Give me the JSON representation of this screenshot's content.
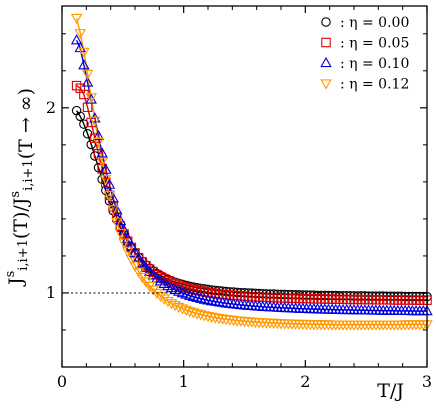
{
  "chart_data": {
    "type": "line",
    "xlabel": "T/J",
    "ylabel": "J^s_{i,i+1}(T)/J^s_{i,i+1}(T → ∞)",
    "xlim": [
      0,
      3
    ],
    "ylim": [
      0.6,
      2.55
    ],
    "x_ticks": [
      0,
      1,
      2,
      3
    ],
    "y_ticks": [
      1,
      2
    ],
    "grid": false,
    "reference_line": {
      "y": 1.0,
      "style": "dotted"
    },
    "legend_position": "top-right",
    "series": [
      {
        "name": ": η = 0.00",
        "marker": "circle",
        "color": "#000000",
        "x": [
          0.12,
          0.15,
          0.18,
          0.21,
          0.24,
          0.27,
          0.3,
          0.33,
          0.36,
          0.39,
          0.42,
          0.45,
          0.48,
          0.51,
          0.54,
          0.57,
          0.6,
          0.63,
          0.66,
          0.69,
          0.72,
          0.75,
          0.78,
          0.81,
          0.84,
          0.87,
          0.9,
          0.93,
          0.96,
          0.99,
          1.02,
          1.05,
          1.08,
          1.11,
          1.14,
          1.17,
          1.2,
          1.23,
          1.26,
          1.29,
          1.32,
          1.35,
          1.38,
          1.41,
          1.44,
          1.47,
          1.5,
          1.53,
          1.56,
          1.59,
          1.62,
          1.65,
          1.68,
          1.71,
          1.74,
          1.77,
          1.8,
          1.83,
          1.86,
          1.89,
          1.92,
          1.95,
          1.98,
          2.01,
          2.04,
          2.07,
          2.1,
          2.13,
          2.16,
          2.19,
          2.22,
          2.25,
          2.28,
          2.31,
          2.34,
          2.37,
          2.4,
          2.43,
          2.46,
          2.49,
          2.52,
          2.55,
          2.58,
          2.61,
          2.64,
          2.67,
          2.7,
          2.73,
          2.76,
          2.79,
          2.82,
          2.85,
          2.88,
          2.91,
          2.94,
          2.97,
          3.0
        ],
        "y": [
          1.985,
          1.954,
          1.912,
          1.86,
          1.802,
          1.74,
          1.677,
          1.614,
          1.554,
          1.497,
          1.444,
          1.396,
          1.352,
          1.312,
          1.277,
          1.245,
          1.217,
          1.192,
          1.17,
          1.151,
          1.134,
          1.119,
          1.105,
          1.094,
          1.083,
          1.074,
          1.066,
          1.058,
          1.052,
          1.046,
          1.041,
          1.036,
          1.032,
          1.028,
          1.025,
          1.022,
          1.019,
          1.016,
          1.014,
          1.012,
          1.01,
          1.008,
          1.006,
          1.005,
          1.003,
          1.002,
          1.001,
          1.0,
          0.999,
          0.998,
          0.997,
          0.996,
          0.995,
          0.994,
          0.994,
          0.993,
          0.992,
          0.992,
          0.991,
          0.991,
          0.99,
          0.99,
          0.989,
          0.989,
          0.988,
          0.988,
          0.987,
          0.987,
          0.987,
          0.986,
          0.986,
          0.986,
          0.985,
          0.985,
          0.985,
          0.985,
          0.984,
          0.984,
          0.984,
          0.984,
          0.983,
          0.983,
          0.983,
          0.983,
          0.983,
          0.982,
          0.982,
          0.982,
          0.982,
          0.982,
          0.981,
          0.981,
          0.981,
          0.981,
          0.981,
          0.981,
          0.98
        ]
      },
      {
        "name": ": η = 0.05",
        "marker": "square",
        "color": "#dd0000",
        "x": [
          0.12,
          0.15,
          0.18,
          0.21,
          0.24,
          0.27,
          0.3,
          0.33,
          0.36,
          0.39,
          0.42,
          0.45,
          0.48,
          0.51,
          0.54,
          0.57,
          0.6,
          0.63,
          0.66,
          0.69,
          0.72,
          0.75,
          0.78,
          0.81,
          0.84,
          0.87,
          0.9,
          0.93,
          0.96,
          0.99,
          1.02,
          1.05,
          1.08,
          1.11,
          1.14,
          1.17,
          1.2,
          1.23,
          1.26,
          1.29,
          1.32,
          1.35,
          1.38,
          1.41,
          1.44,
          1.47,
          1.5,
          1.53,
          1.56,
          1.59,
          1.62,
          1.65,
          1.68,
          1.71,
          1.74,
          1.77,
          1.8,
          1.83,
          1.86,
          1.89,
          1.92,
          1.95,
          1.98,
          2.01,
          2.04,
          2.07,
          2.1,
          2.13,
          2.16,
          2.19,
          2.22,
          2.25,
          2.28,
          2.31,
          2.34,
          2.37,
          2.4,
          2.43,
          2.46,
          2.49,
          2.52,
          2.55,
          2.58,
          2.61,
          2.64,
          2.67,
          2.7,
          2.73,
          2.76,
          2.79,
          2.82,
          2.85,
          2.88,
          2.91,
          2.94,
          2.97,
          3.0
        ],
        "y": [
          2.12,
          2.106,
          2.072,
          2.003,
          1.921,
          1.836,
          1.752,
          1.671,
          1.596,
          1.527,
          1.465,
          1.41,
          1.361,
          1.318,
          1.28,
          1.246,
          1.216,
          1.19,
          1.167,
          1.147,
          1.129,
          1.113,
          1.099,
          1.087,
          1.076,
          1.066,
          1.057,
          1.049,
          1.042,
          1.035,
          1.029,
          1.024,
          1.019,
          1.015,
          1.011,
          1.007,
          1.004,
          1.001,
          0.998,
          0.995,
          0.993,
          0.991,
          0.989,
          0.987,
          0.986,
          0.984,
          0.983,
          0.981,
          0.98,
          0.979,
          0.978,
          0.977,
          0.976,
          0.975,
          0.975,
          0.974,
          0.973,
          0.973,
          0.972,
          0.971,
          0.971,
          0.97,
          0.97,
          0.969,
          0.969,
          0.968,
          0.968,
          0.968,
          0.967,
          0.967,
          0.967,
          0.966,
          0.966,
          0.966,
          0.965,
          0.965,
          0.965,
          0.965,
          0.964,
          0.964,
          0.964,
          0.964,
          0.963,
          0.963,
          0.963,
          0.963,
          0.963,
          0.962,
          0.962,
          0.962,
          0.962,
          0.962,
          0.962,
          0.961,
          0.961,
          0.961,
          0.961
        ]
      },
      {
        "name": ": η = 0.10",
        "marker": "triangle-up",
        "color": "#0000dd",
        "x": [
          0.12,
          0.15,
          0.18,
          0.21,
          0.24,
          0.27,
          0.3,
          0.33,
          0.36,
          0.39,
          0.42,
          0.45,
          0.48,
          0.51,
          0.54,
          0.57,
          0.6,
          0.63,
          0.66,
          0.69,
          0.72,
          0.75,
          0.78,
          0.81,
          0.84,
          0.87,
          0.9,
          0.93,
          0.96,
          0.99,
          1.02,
          1.05,
          1.08,
          1.11,
          1.14,
          1.17,
          1.2,
          1.23,
          1.26,
          1.29,
          1.32,
          1.35,
          1.38,
          1.41,
          1.44,
          1.47,
          1.5,
          1.53,
          1.56,
          1.59,
          1.62,
          1.65,
          1.68,
          1.71,
          1.74,
          1.77,
          1.8,
          1.83,
          1.86,
          1.89,
          1.92,
          1.95,
          1.98,
          2.01,
          2.04,
          2.07,
          2.1,
          2.13,
          2.16,
          2.19,
          2.22,
          2.25,
          2.28,
          2.31,
          2.34,
          2.37,
          2.4,
          2.43,
          2.46,
          2.49,
          2.52,
          2.55,
          2.58,
          2.61,
          2.64,
          2.67,
          2.7,
          2.73,
          2.76,
          2.79,
          2.82,
          2.85,
          2.88,
          2.91,
          2.94,
          2.97,
          3.0
        ],
        "y": [
          2.365,
          2.323,
          2.23,
          2.137,
          2.045,
          1.943,
          1.848,
          1.754,
          1.666,
          1.585,
          1.512,
          1.447,
          1.389,
          1.338,
          1.293,
          1.253,
          1.218,
          1.187,
          1.16,
          1.136,
          1.114,
          1.095,
          1.078,
          1.063,
          1.049,
          1.037,
          1.026,
          1.016,
          1.007,
          0.999,
          0.992,
          0.985,
          0.979,
          0.974,
          0.969,
          0.964,
          0.96,
          0.956,
          0.953,
          0.95,
          0.947,
          0.944,
          0.942,
          0.939,
          0.937,
          0.935,
          0.933,
          0.931,
          0.93,
          0.928,
          0.927,
          0.925,
          0.924,
          0.923,
          0.922,
          0.921,
          0.92,
          0.919,
          0.918,
          0.917,
          0.916,
          0.915,
          0.915,
          0.914,
          0.913,
          0.913,
          0.912,
          0.911,
          0.911,
          0.91,
          0.91,
          0.909,
          0.909,
          0.908,
          0.908,
          0.908,
          0.907,
          0.907,
          0.906,
          0.906,
          0.906,
          0.905,
          0.905,
          0.905,
          0.904,
          0.904,
          0.904,
          0.904,
          0.903,
          0.903,
          0.903,
          0.903,
          0.902,
          0.902,
          0.902,
          0.902,
          0.902
        ]
      },
      {
        "name": ": η = 0.12",
        "marker": "triangle-down",
        "color": "#ff9900",
        "x": [
          0.12,
          0.15,
          0.18,
          0.21,
          0.24,
          0.27,
          0.3,
          0.33,
          0.36,
          0.39,
          0.42,
          0.45,
          0.48,
          0.51,
          0.54,
          0.57,
          0.6,
          0.63,
          0.66,
          0.69,
          0.72,
          0.75,
          0.78,
          0.81,
          0.84,
          0.87,
          0.9,
          0.93,
          0.96,
          0.99,
          1.02,
          1.05,
          1.08,
          1.11,
          1.14,
          1.17,
          1.2,
          1.23,
          1.26,
          1.29,
          1.32,
          1.35,
          1.38,
          1.41,
          1.44,
          1.47,
          1.5,
          1.53,
          1.56,
          1.59,
          1.62,
          1.65,
          1.68,
          1.71,
          1.74,
          1.77,
          1.8,
          1.83,
          1.86,
          1.89,
          1.92,
          1.95,
          1.98,
          2.01,
          2.04,
          2.07,
          2.1,
          2.13,
          2.16,
          2.19,
          2.22,
          2.25,
          2.28,
          2.31,
          2.34,
          2.37,
          2.4,
          2.43,
          2.46,
          2.49,
          2.52,
          2.55,
          2.58,
          2.61,
          2.64,
          2.67,
          2.7,
          2.73,
          2.76,
          2.79,
          2.82,
          2.85,
          2.88,
          2.91,
          2.94,
          2.97,
          3.0
        ],
        "y": [
          2.485,
          2.403,
          2.302,
          2.183,
          2.056,
          1.93,
          1.816,
          1.71,
          1.614,
          1.528,
          1.451,
          1.384,
          1.324,
          1.272,
          1.225,
          1.184,
          1.147,
          1.115,
          1.086,
          1.061,
          1.038,
          1.018,
          1.0,
          0.984,
          0.969,
          0.956,
          0.944,
          0.934,
          0.924,
          0.916,
          0.908,
          0.901,
          0.895,
          0.889,
          0.884,
          0.879,
          0.875,
          0.871,
          0.867,
          0.864,
          0.861,
          0.858,
          0.856,
          0.854,
          0.851,
          0.85,
          0.848,
          0.846,
          0.845,
          0.843,
          0.842,
          0.841,
          0.84,
          0.839,
          0.838,
          0.837,
          0.836,
          0.835,
          0.835,
          0.834,
          0.833,
          0.833,
          0.832,
          0.832,
          0.831,
          0.831,
          0.831,
          0.83,
          0.83,
          0.83,
          0.829,
          0.829,
          0.829,
          0.829,
          0.829,
          0.829,
          0.829,
          0.829,
          0.829,
          0.829,
          0.829,
          0.829,
          0.829,
          0.829,
          0.829,
          0.829,
          0.829,
          0.829,
          0.829,
          0.829,
          0.83,
          0.83,
          0.83,
          0.83,
          0.83,
          0.83,
          0.83
        ]
      }
    ]
  }
}
